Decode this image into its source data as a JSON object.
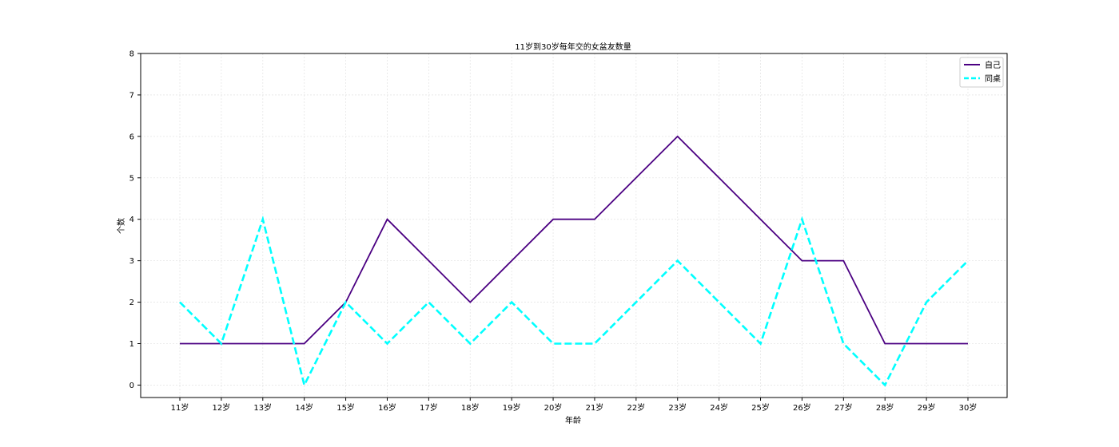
{
  "chart_data": {
    "type": "line",
    "title": "11岁到30岁每年交的女盆友数量",
    "xlabel": "年龄",
    "ylabel": "个数",
    "categories": [
      "11岁",
      "12岁",
      "13岁",
      "14岁",
      "15岁",
      "16岁",
      "17岁",
      "18岁",
      "19岁",
      "20岁",
      "21岁",
      "22岁",
      "23岁",
      "24岁",
      "25岁",
      "26岁",
      "27岁",
      "28岁",
      "29岁",
      "30岁"
    ],
    "ylim": [
      -0.3,
      8
    ],
    "yticks": [
      0,
      1,
      2,
      3,
      4,
      5,
      6,
      7,
      8
    ],
    "grid": true,
    "legend_position": "top-right",
    "series": [
      {
        "name": "自己",
        "color": "#4b0082",
        "style": "solid",
        "values": [
          1,
          1,
          1,
          1,
          2,
          4,
          3,
          2,
          3,
          4,
          4,
          5,
          6,
          5,
          4,
          3,
          3,
          1,
          1,
          1
        ]
      },
      {
        "name": "同桌",
        "color": "#00ffff",
        "style": "dashed",
        "values": [
          2,
          1,
          4,
          0,
          2,
          1,
          2,
          1,
          2,
          1,
          1,
          2,
          3,
          2,
          1,
          4,
          1,
          0,
          2,
          3
        ]
      }
    ]
  }
}
